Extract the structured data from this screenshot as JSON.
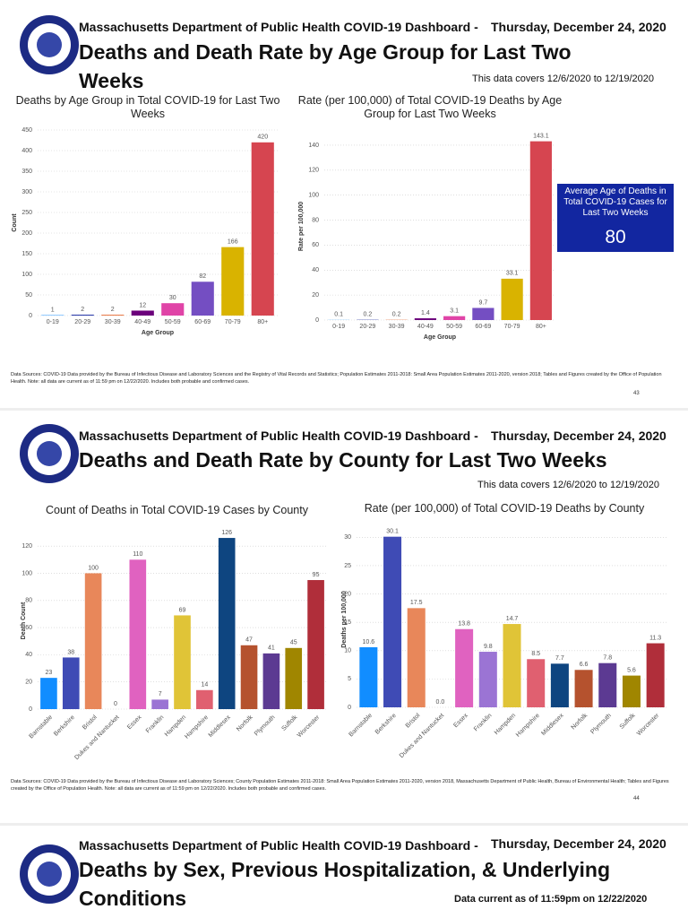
{
  "pages": [
    {
      "header": "Massachusetts Department of Public Health COVID-19 Dashboard -",
      "date": "Thursday, December 24, 2020",
      "title": "Deaths and Death Rate by Age Group for Last Two Weeks",
      "coverage": "This data covers 12/6/2020 to 12/19/2020",
      "callout": {
        "label": "Average Age of Deaths in Total COVID-19 Cases for Last Two Weeks",
        "value": 80
      },
      "sources": "Data Sources: COVID-19 Data provided by the Bureau of Infectious Disease and Laboratory Sciences and the Registry of Vital Records and Statistics; Population Estimates 2011-2018: Small Area Population Estimates 2011-2020, version 2018; Tables and Figures created by the Office of Population Health. Note: all data are current as of 11:59 pm on 12/22/2020. Includes both probable and confirmed cases.",
      "page_number": 43
    },
    {
      "header": "Massachusetts Department of Public Health COVID-19 Dashboard -",
      "date": "Thursday, December 24, 2020",
      "title": "Deaths and Death Rate by County for Last Two Weeks",
      "coverage": "This data covers 12/6/2020 to 12/19/2020",
      "sources": "Data Sources: COVID-19 Data provided by the Bureau of Infectious Disease and Laboratory Sciences; County Population Estimates 2011-2018: Small Area Population Estimates 2011-2020, version 2018, Massachusetts Department of Public Health, Bureau of Environmental Health; Tables and Figures created by the Office of Population Health. Note: all data are current as of 11:59 pm on 12/22/2020. Includes both probable and confirmed cases.",
      "page_number": 44
    },
    {
      "header": "Massachusetts Department of Public Health COVID-19 Dashboard -",
      "date": "Thursday, December 24, 2020",
      "title": "Deaths by Sex, Previous Hospitalization, & Underlying Conditions",
      "coverage": "Data current as of 11:59pm on 12/22/2020"
    }
  ],
  "chart_data": [
    {
      "type": "bar",
      "title": "Deaths by Age Group in Total COVID-19 for Last Two Weeks",
      "y_label": "Count",
      "x_label": "Age Group",
      "categories": [
        "0-19",
        "20-29",
        "30-39",
        "40-49",
        "50-59",
        "60-69",
        "70-79",
        "80+"
      ],
      "values": [
        1,
        2,
        2,
        12,
        30,
        82,
        166,
        420
      ],
      "colors": [
        "#118dff",
        "#12239e",
        "#e66c37",
        "#6b007b",
        "#e044a7",
        "#744ec2",
        "#d9b300",
        "#d64550"
      ],
      "ylim": [
        0,
        450
      ],
      "yticks": [
        0,
        50,
        100,
        150,
        200,
        250,
        300,
        350,
        400,
        450
      ],
      "grid": true
    },
    {
      "type": "bar",
      "title": "Rate (per 100,000) of Total COVID-19 Deaths by Age Group for Last Two Weeks",
      "y_label": "Rate per 100,000",
      "x_label": "Age Group",
      "categories": [
        "0-19",
        "20-29",
        "30-39",
        "40-49",
        "50-59",
        "60-69",
        "70-79",
        "80+"
      ],
      "values": [
        0.1,
        0.2,
        0.2,
        1.4,
        3.1,
        9.7,
        33.1,
        143.1
      ],
      "colors": [
        "#118dff",
        "#12239e",
        "#e66c37",
        "#6b007b",
        "#e044a7",
        "#744ec2",
        "#d9b300",
        "#d64550"
      ],
      "ylim": [
        0,
        150
      ],
      "yticks": [
        0,
        20,
        40,
        60,
        80,
        100,
        120,
        140
      ],
      "grid": true
    },
    {
      "type": "bar",
      "title": "Count of Deaths in Total COVID-19 Cases by County",
      "y_label": "Death Count",
      "categories": [
        "Barnstable",
        "Berkshire",
        "Bristol",
        "Dukes and Nantucket",
        "Essex",
        "Franklin",
        "Hampden",
        "Hampshire",
        "Middlesex",
        "Norfolk",
        "Plymouth",
        "Suffolk",
        "Worcester"
      ],
      "values": [
        23,
        38,
        100,
        0,
        110,
        7,
        69,
        14,
        126,
        47,
        41,
        45,
        95
      ],
      "colors": [
        "#118dff",
        "#3f4bb5",
        "#e8875a",
        "#888888",
        "#e062c0",
        "#9b74d4",
        "#e0c437",
        "#e06070",
        "#0e4580",
        "#b5522e",
        "#5c3a92",
        "#a08600",
        "#b02e3a"
      ],
      "ylim": [
        0,
        130
      ],
      "yticks": [
        0,
        20,
        40,
        60,
        80,
        100,
        120
      ],
      "grid": true
    },
    {
      "type": "bar",
      "title": "Rate (per 100,000) of Total COVID-19 Deaths by County",
      "y_label": "Deaths per 100,000",
      "categories": [
        "Barnstable",
        "Berkshire",
        "Bristol",
        "Dukes and Nantucket",
        "Essex",
        "Franklin",
        "Hampden",
        "Hampshire",
        "Middlesex",
        "Norfolk",
        "Plymouth",
        "Suffolk",
        "Worcester"
      ],
      "values": [
        10.6,
        30.1,
        17.5,
        0.0,
        13.8,
        9.8,
        14.7,
        8.5,
        7.7,
        6.6,
        7.8,
        5.6,
        11.3
      ],
      "value_labels": [
        "10.6",
        "30.1",
        "17.5",
        "0.0",
        "13.8",
        "9.8",
        "14.7",
        "8.5",
        "7.7",
        "6.6",
        "7.8",
        "5.6",
        "11.3"
      ],
      "colors": [
        "#118dff",
        "#3f4bb5",
        "#e8875a",
        "#888888",
        "#e062c0",
        "#9b74d4",
        "#e0c437",
        "#e06070",
        "#0e4580",
        "#b5522e",
        "#5c3a92",
        "#a08600",
        "#b02e3a"
      ],
      "ylim": [
        0,
        31
      ],
      "yticks": [
        0,
        5,
        10,
        15,
        20,
        25,
        30
      ],
      "grid": true
    }
  ]
}
